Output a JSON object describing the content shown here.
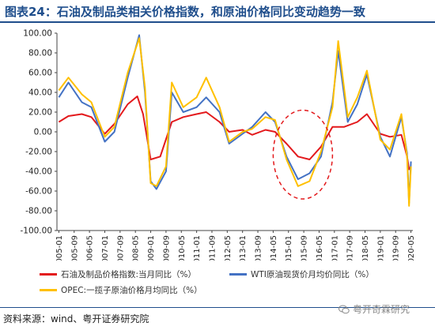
{
  "header": {
    "title": "图表24：石油及制品类相关价格指数，和原油价格同比变动趋势一致"
  },
  "footer": {
    "source": "资料来源：wind、粤开证券研究院",
    "watermark": "粤开奇霖研究"
  },
  "colors": {
    "series1": "#e3191c",
    "series2": "#4472c4",
    "series3": "#ffc000",
    "highlight": "#e3191c",
    "axis": "#444444"
  },
  "chart_data": {
    "type": "line",
    "ylim": [
      -100,
      100
    ],
    "yticks": [
      "100.00",
      "80.00",
      "60.00",
      "40.00",
      "20.00",
      "0.00",
      "-20.00",
      "-40.00",
      "-60.00",
      "-80.00",
      "-100.00"
    ],
    "xticks": [
      "2005-01",
      "2005-09",
      "2006-05",
      "2007-01",
      "2007-09",
      "2008-05",
      "2009-01",
      "2009-09",
      "2010-05",
      "2011-01",
      "2011-09",
      "2012-05",
      "2013-01",
      "2013-09",
      "2014-05",
      "2015-01",
      "2015-09",
      "2016-05",
      "2017-01",
      "2017-09",
      "2018-05",
      "2019-01",
      "2019-09",
      "2020-05"
    ],
    "highlight": {
      "shape": "dashed-ellipse",
      "x_range": [
        "2014-05",
        "2016-12"
      ],
      "y_range": [
        -68,
        22
      ]
    },
    "series": [
      {
        "name": "石油及制品价格指数:当月同比（%）",
        "color_key": "series1",
        "points": [
          [
            "2005-01",
            10
          ],
          [
            "2005-06",
            16
          ],
          [
            "2006-01",
            18
          ],
          [
            "2006-06",
            15
          ],
          [
            "2007-01",
            -2
          ],
          [
            "2007-06",
            8
          ],
          [
            "2008-01",
            28
          ],
          [
            "2008-06",
            36
          ],
          [
            "2008-09",
            18
          ],
          [
            "2009-01",
            -28
          ],
          [
            "2009-06",
            -25
          ],
          [
            "2009-12",
            10
          ],
          [
            "2010-06",
            15
          ],
          [
            "2011-01",
            18
          ],
          [
            "2011-06",
            20
          ],
          [
            "2012-01",
            10
          ],
          [
            "2012-06",
            0
          ],
          [
            "2013-01",
            2
          ],
          [
            "2013-06",
            -3
          ],
          [
            "2014-01",
            2
          ],
          [
            "2014-06",
            0
          ],
          [
            "2014-12",
            -12
          ],
          [
            "2015-06",
            -25
          ],
          [
            "2015-12",
            -28
          ],
          [
            "2016-06",
            -15
          ],
          [
            "2016-12",
            5
          ],
          [
            "2017-06",
            5
          ],
          [
            "2018-01",
            10
          ],
          [
            "2018-06",
            18
          ],
          [
            "2019-01",
            -2
          ],
          [
            "2019-06",
            -5
          ],
          [
            "2019-12",
            -3
          ],
          [
            "2020-03",
            -25
          ],
          [
            "2020-04",
            -38
          ],
          [
            "2020-05",
            -35
          ]
        ]
      },
      {
        "name": "WTI原油现货价月均价同比（%）",
        "color_key": "series2",
        "points": [
          [
            "2005-01",
            35
          ],
          [
            "2005-06",
            50
          ],
          [
            "2006-01",
            30
          ],
          [
            "2006-06",
            25
          ],
          [
            "2007-01",
            -10
          ],
          [
            "2007-06",
            0
          ],
          [
            "2008-01",
            55
          ],
          [
            "2008-07",
            98
          ],
          [
            "2008-10",
            40
          ],
          [
            "2009-01",
            -50
          ],
          [
            "2009-04",
            -58
          ],
          [
            "2009-09",
            -40
          ],
          [
            "2009-12",
            40
          ],
          [
            "2010-06",
            20
          ],
          [
            "2011-01",
            25
          ],
          [
            "2011-06",
            35
          ],
          [
            "2012-01",
            20
          ],
          [
            "2012-06",
            -12
          ],
          [
            "2013-01",
            -2
          ],
          [
            "2013-06",
            5
          ],
          [
            "2014-01",
            20
          ],
          [
            "2014-06",
            10
          ],
          [
            "2014-12",
            -25
          ],
          [
            "2015-06",
            -48
          ],
          [
            "2015-12",
            -42
          ],
          [
            "2016-06",
            -25
          ],
          [
            "2016-12",
            30
          ],
          [
            "2017-03",
            82
          ],
          [
            "2017-08",
            10
          ],
          [
            "2018-01",
            28
          ],
          [
            "2018-06",
            58
          ],
          [
            "2019-01",
            -5
          ],
          [
            "2019-06",
            -25
          ],
          [
            "2019-12",
            15
          ],
          [
            "2020-03",
            -22
          ],
          [
            "2020-04",
            -72
          ],
          [
            "2020-05",
            -30
          ]
        ]
      },
      {
        "name": "OPEC:一揽子原油价格月均同比（%）",
        "color_key": "series3",
        "points": [
          [
            "2005-01",
            42
          ],
          [
            "2005-06",
            55
          ],
          [
            "2006-01",
            38
          ],
          [
            "2006-06",
            30
          ],
          [
            "2007-01",
            -5
          ],
          [
            "2007-06",
            5
          ],
          [
            "2008-01",
            60
          ],
          [
            "2008-07",
            95
          ],
          [
            "2008-10",
            45
          ],
          [
            "2009-01",
            -52
          ],
          [
            "2009-04",
            -55
          ],
          [
            "2009-09",
            -35
          ],
          [
            "2009-12",
            50
          ],
          [
            "2010-06",
            25
          ],
          [
            "2011-01",
            35
          ],
          [
            "2011-06",
            55
          ],
          [
            "2012-01",
            25
          ],
          [
            "2012-06",
            -10
          ],
          [
            "2013-01",
            0
          ],
          [
            "2013-06",
            3
          ],
          [
            "2014-01",
            15
          ],
          [
            "2014-06",
            12
          ],
          [
            "2014-12",
            -28
          ],
          [
            "2015-06",
            -55
          ],
          [
            "2015-12",
            -50
          ],
          [
            "2016-06",
            -20
          ],
          [
            "2016-12",
            25
          ],
          [
            "2017-03",
            92
          ],
          [
            "2017-08",
            15
          ],
          [
            "2018-01",
            35
          ],
          [
            "2018-06",
            62
          ],
          [
            "2019-01",
            -8
          ],
          [
            "2019-06",
            -18
          ],
          [
            "2019-12",
            18
          ],
          [
            "2020-03",
            -25
          ],
          [
            "2020-04",
            -75
          ],
          [
            "2020-05",
            -35
          ]
        ]
      }
    ]
  }
}
